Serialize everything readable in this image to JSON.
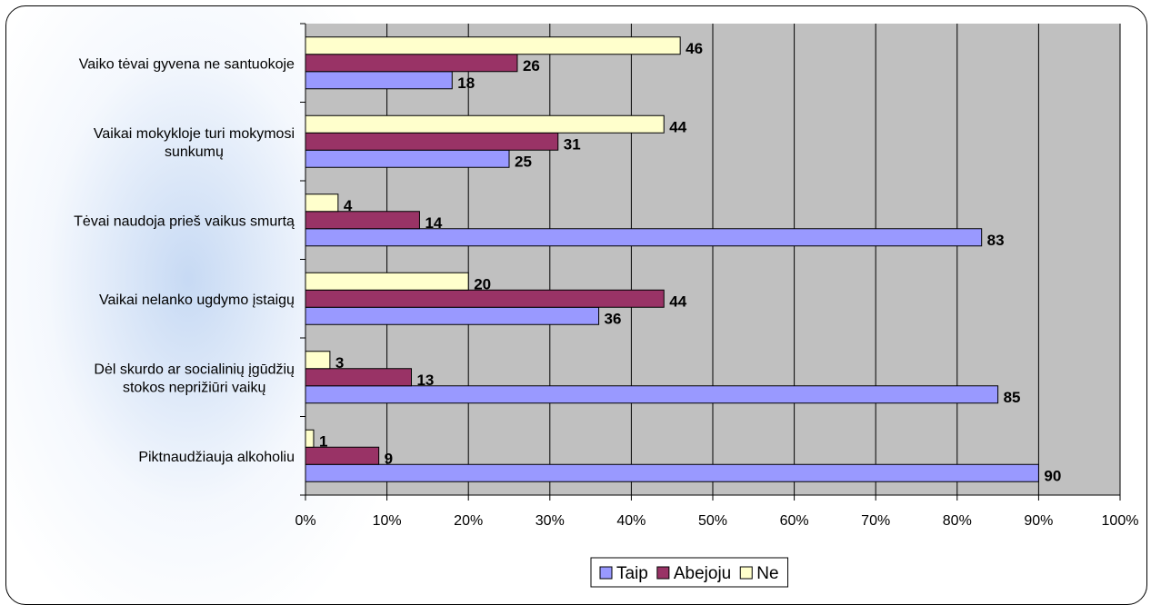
{
  "chart_data": {
    "type": "bar",
    "orientation": "horizontal",
    "categories": [
      "Vaiko tėvai gyvena ne santuokoje",
      "Vaikai mokykloje turi mokymosi sunkumų",
      "Tėvai naudoja prieš vaikus smurtą",
      "Vaikai nelanko ugdymo įstaigų",
      "Dėl skurdo ar socialinių įgūdžių stokos neprižiūri vaikų",
      "Piktnaudžiauja alkoholiu"
    ],
    "category_lines": [
      [
        "Vaiko tėvai gyvena ne santuokoje"
      ],
      [
        "Vaikai mokykloje turi mokymosi",
        "sunkumų"
      ],
      [
        "Tėvai naudoja prieš vaikus smurtą"
      ],
      [
        "Vaikai nelanko ugdymo įstaigų"
      ],
      [
        "Dėl skurdo ar socialinių įgūdžių",
        "stokos neprižiūri vaikų"
      ],
      [
        "Piktnaudžiauja alkoholiu"
      ]
    ],
    "series": [
      {
        "name": "Taip",
        "color": "#9999ff",
        "values": [
          18,
          25,
          83,
          36,
          85,
          90
        ]
      },
      {
        "name": "Abejoju",
        "color": "#993366",
        "values": [
          26,
          31,
          14,
          44,
          13,
          9
        ]
      },
      {
        "name": "Ne",
        "color": "#ffffcc",
        "values": [
          46,
          44,
          4,
          20,
          3,
          1
        ]
      }
    ],
    "x_ticks": [
      "0%",
      "10%",
      "20%",
      "30%",
      "40%",
      "50%",
      "60%",
      "70%",
      "80%",
      "90%",
      "100%"
    ],
    "xlim": [
      0,
      100
    ],
    "plot_background": "#c0c0c0",
    "grid": true,
    "legend_position": "bottom"
  }
}
